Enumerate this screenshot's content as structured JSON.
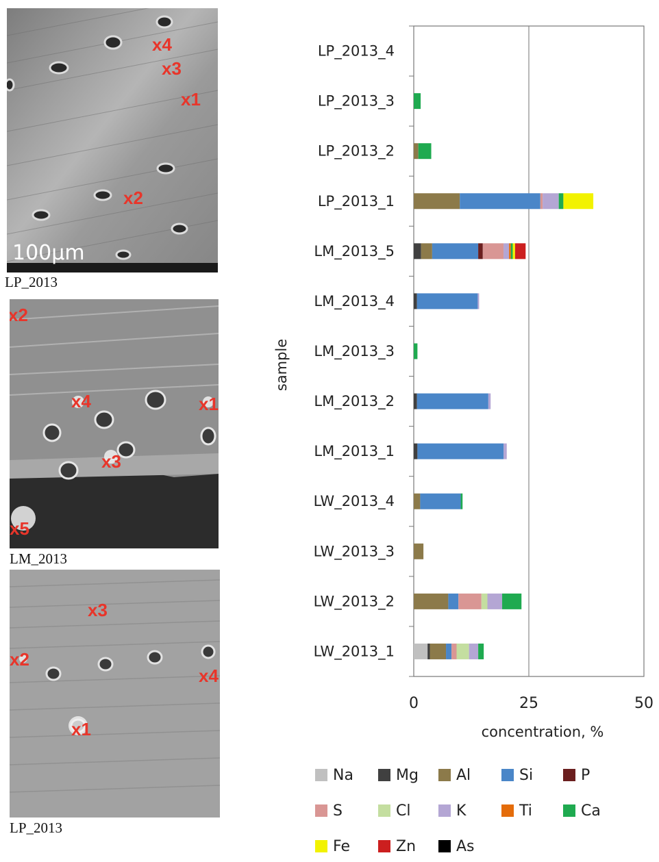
{
  "panels": [
    {
      "caption": "LP_2013",
      "scalebar": "100µm",
      "markers": [
        "x4",
        "x3",
        "x1",
        "x2"
      ]
    },
    {
      "caption": "LM_2013",
      "markers": [
        "x2",
        "x4",
        "x1",
        "x3",
        "x5"
      ]
    },
    {
      "caption": "LP_2013",
      "markers": [
        "x3",
        "x2",
        "x4",
        "x1"
      ]
    }
  ],
  "chart_data": {
    "type": "bar",
    "orientation": "horizontal",
    "stacked": true,
    "xlabel": "concentration, %",
    "ylabel": "sample",
    "xlim": [
      0,
      50
    ],
    "xticks": [
      0,
      25,
      50
    ],
    "reference_line": 25,
    "elements": [
      "Na",
      "Mg",
      "Al",
      "Si",
      "P",
      "S",
      "Cl",
      "K",
      "Ti",
      "Ca",
      "Fe",
      "Zn",
      "As"
    ],
    "colors": {
      "Na": "#c0c0c0",
      "Mg": "#404040",
      "Al": "#8c7a4a",
      "Si": "#4a86c8",
      "P": "#6b1f1f",
      "S": "#d99694",
      "Cl": "#c4dea0",
      "K": "#b4a6d4",
      "Ti": "#e46c0a",
      "Ca": "#1faa50",
      "Fe": "#f2f200",
      "Zn": "#cc1f1f",
      "As": "#000000"
    },
    "categories": [
      "LP_2013_4",
      "LP_2013_3",
      "LP_2013_2",
      "LP_2013_1",
      "LM_2013_5",
      "LM_2013_4",
      "LM_2013_3",
      "LM_2013_2",
      "LM_2013_1",
      "LW_2013_4",
      "LW_2013_3",
      "LW_2013_2",
      "LW_2013_1"
    ],
    "series": [
      {
        "name": "Na",
        "values": [
          0,
          0,
          0,
          0,
          0,
          0,
          0,
          0,
          0,
          0,
          0,
          0,
          3.0
        ]
      },
      {
        "name": "Mg",
        "values": [
          0,
          0,
          0,
          0,
          1.6,
          0.7,
          0,
          0.7,
          0.8,
          0,
          0,
          0,
          0.5
        ]
      },
      {
        "name": "Al",
        "values": [
          0,
          0,
          1.0,
          10.0,
          2.4,
          0,
          0,
          0,
          0,
          1.4,
          2.1,
          7.5,
          3.5
        ]
      },
      {
        "name": "Si",
        "values": [
          0,
          0,
          0,
          17.5,
          10.0,
          13.2,
          0,
          15.5,
          18.7,
          8.8,
          0,
          2.2,
          1.2
        ]
      },
      {
        "name": "P",
        "values": [
          0,
          0,
          0,
          0,
          1.0,
          0,
          0,
          0,
          0,
          0,
          0,
          0,
          0
        ]
      },
      {
        "name": "S",
        "values": [
          0,
          0,
          0,
          0.5,
          4.5,
          0,
          0,
          0,
          0,
          0,
          0,
          5.0,
          1.1
        ]
      },
      {
        "name": "Cl",
        "values": [
          0,
          0,
          0,
          0,
          0,
          0,
          0,
          0,
          0,
          0,
          0,
          1.3,
          2.7
        ]
      },
      {
        "name": "K",
        "values": [
          0,
          0,
          0,
          3.5,
          1.2,
          0.3,
          0,
          0.5,
          0.7,
          0,
          0,
          3.2,
          2.0
        ]
      },
      {
        "name": "Ti",
        "values": [
          0,
          0,
          0,
          0,
          0.4,
          0,
          0,
          0,
          0,
          0,
          0,
          0,
          0
        ]
      },
      {
        "name": "Ca",
        "values": [
          0,
          1.5,
          2.8,
          1.0,
          0.4,
          0,
          0.8,
          0,
          0,
          0.4,
          0,
          4.2,
          1.2
        ]
      },
      {
        "name": "Fe",
        "values": [
          0,
          0,
          0,
          6.5,
          0.5,
          0,
          0,
          0,
          0,
          0,
          0,
          0,
          0
        ]
      },
      {
        "name": "Zn",
        "values": [
          0,
          0,
          0,
          0,
          2.3,
          0,
          0,
          0,
          0,
          0,
          0,
          0,
          0
        ]
      },
      {
        "name": "As",
        "values": [
          0,
          0,
          0,
          0,
          0,
          0,
          0,
          0,
          0,
          0,
          0,
          0,
          0
        ]
      }
    ],
    "legend_position": "bottom"
  }
}
